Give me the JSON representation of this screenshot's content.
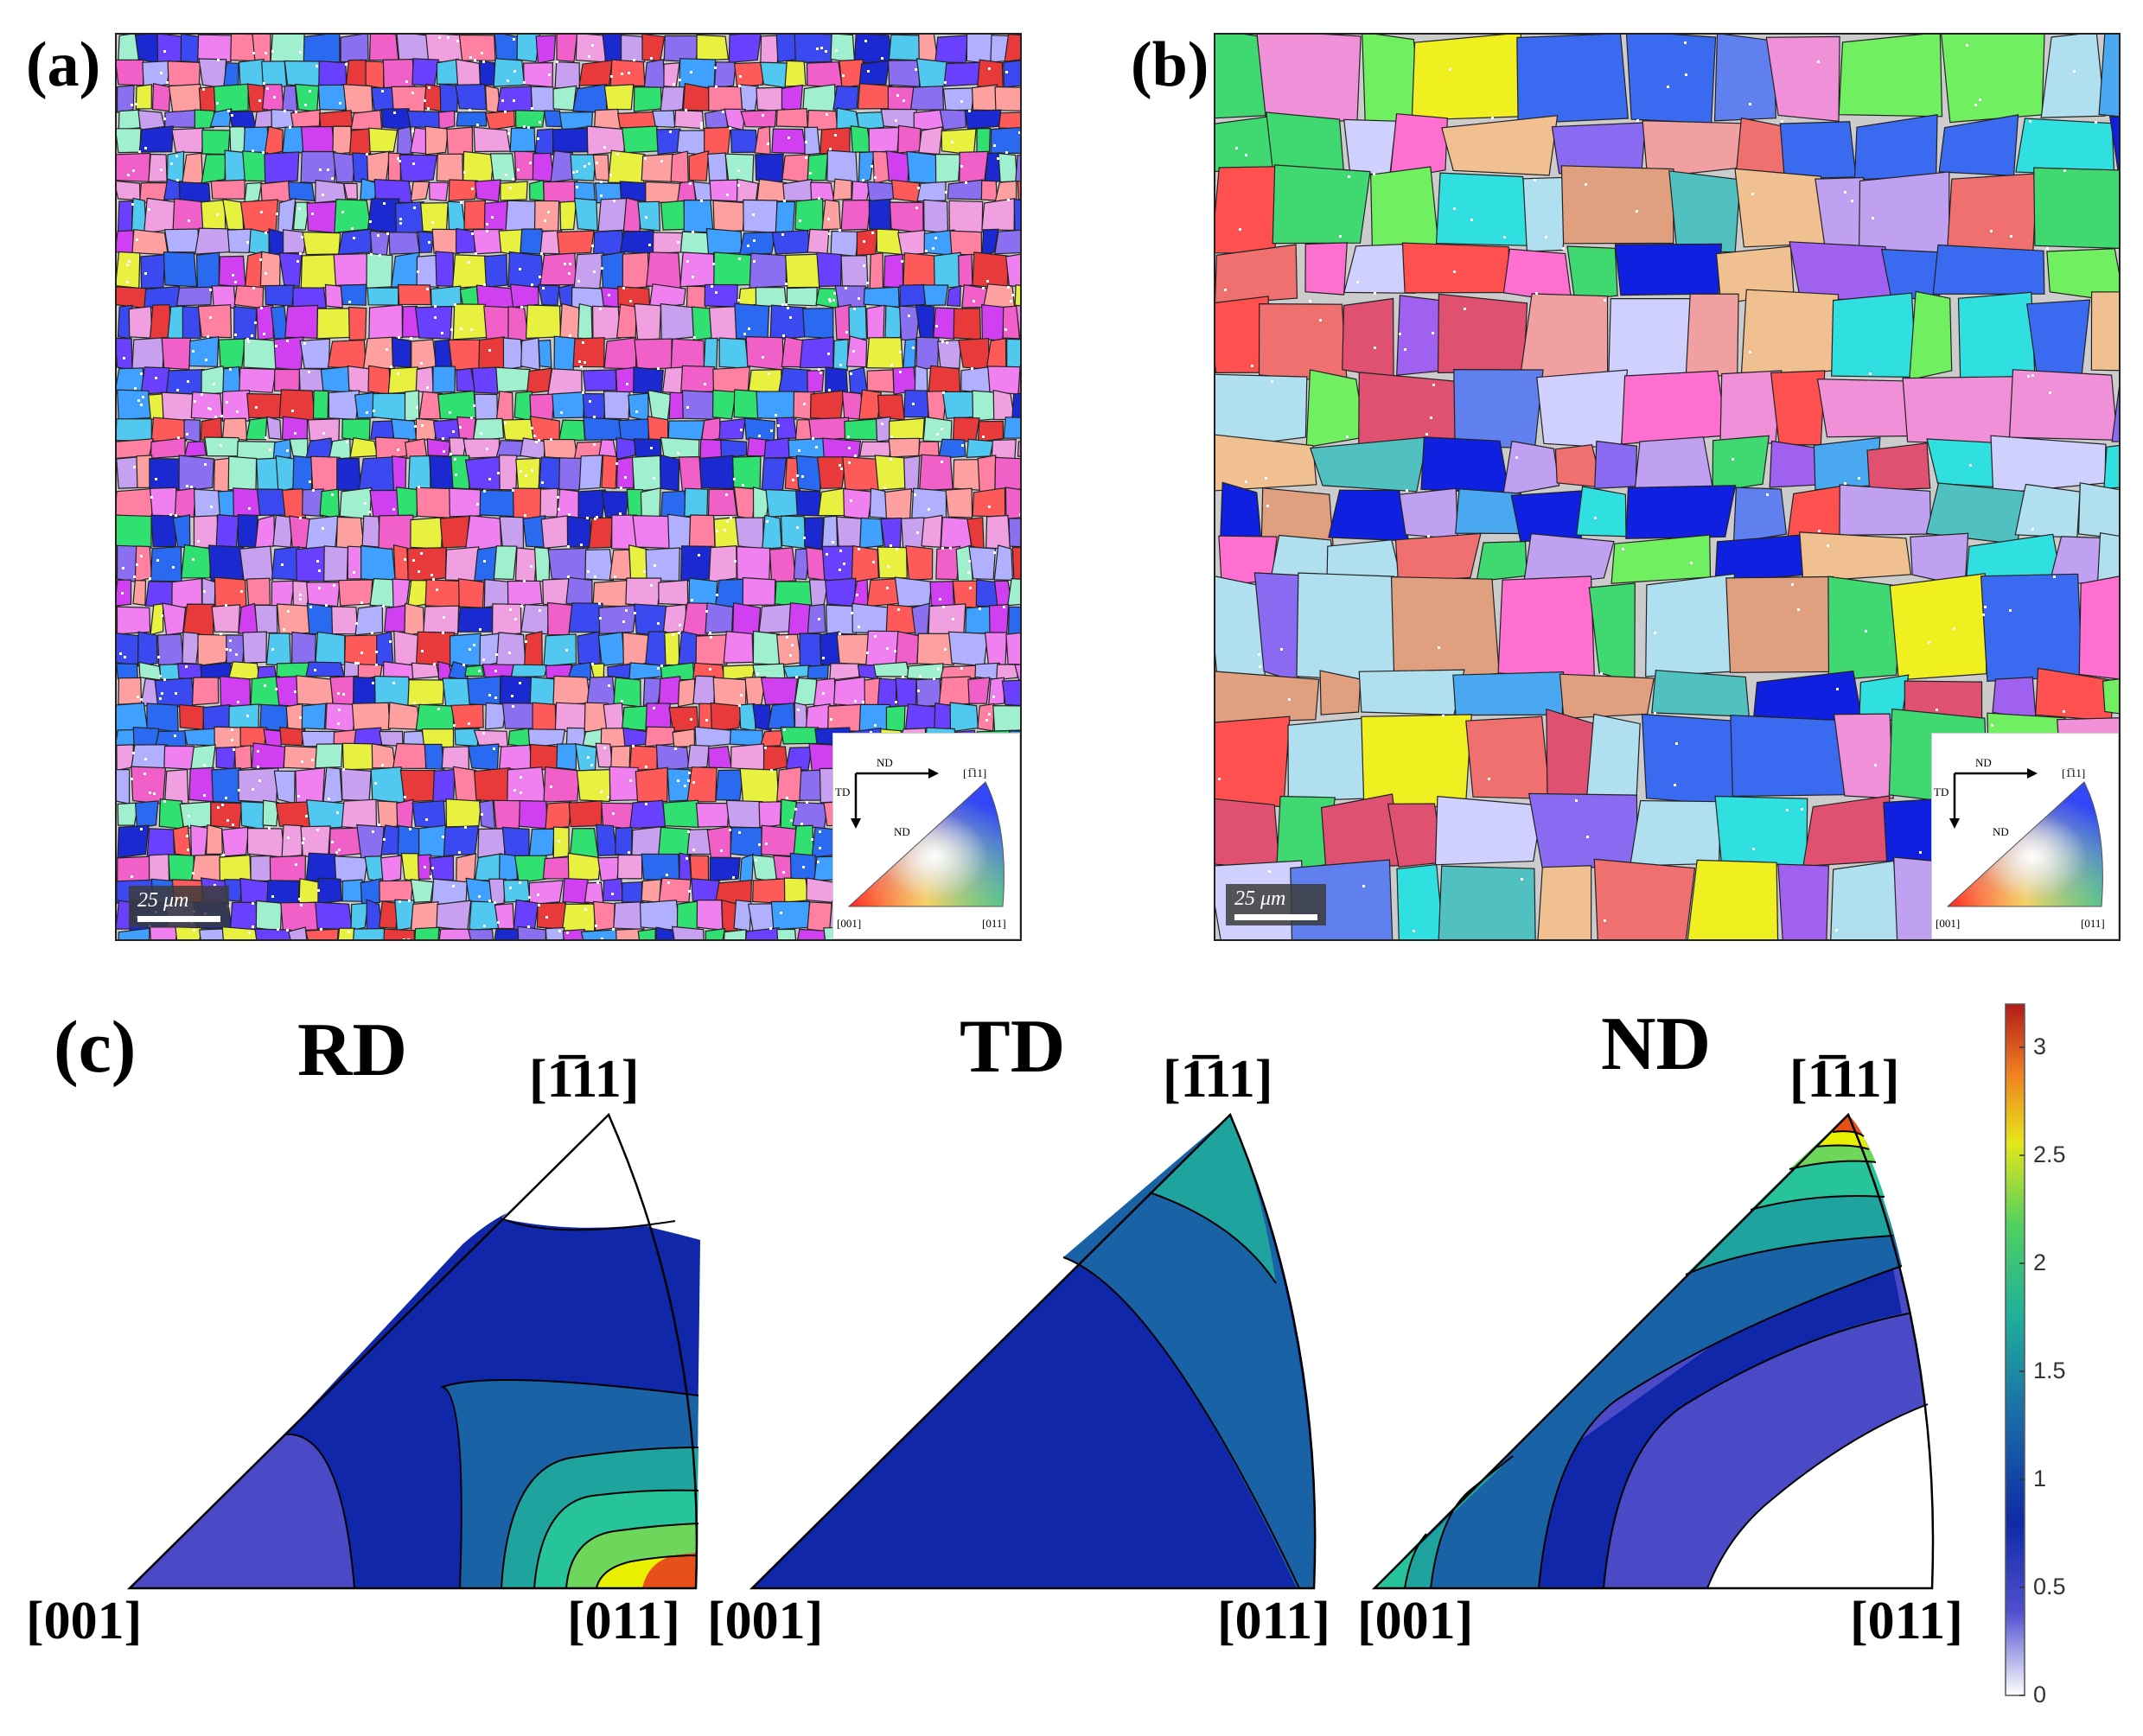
{
  "panels": {
    "a": {
      "label": "(a)",
      "scale_text": "25 μm"
    },
    "b": {
      "label": "(b)",
      "scale_text": "25 μm"
    },
    "c": {
      "label": "(c)"
    }
  },
  "ipf_key": {
    "nd_arrow": "ND",
    "td_arrow": "TD",
    "center": "ND",
    "v001": "[001]",
    "v011": "[011]",
    "v111": "[1̅11]"
  },
  "ipf_figures": [
    {
      "title": "RD",
      "v001": "[001]",
      "v011": "[011]",
      "v111": "[1̅11]"
    },
    {
      "title": "TD",
      "v001": "[001]",
      "v011": "[011]",
      "v111": "[1̅11]"
    },
    {
      "title": "ND",
      "v001": "[001]",
      "v011": "[011]",
      "v111": "[1̅11]"
    }
  ],
  "colorbar": {
    "min": 0,
    "max": 3.2,
    "ticks": [
      "0",
      "0.5",
      "1",
      "1.5",
      "2",
      "2.5",
      "3"
    ],
    "colors": [
      "#ffffff",
      "#3b3bcc",
      "#0f2aa6",
      "#1a63a8",
      "#1fa7a0",
      "#3dd36a",
      "#e6e61a",
      "#e8501a",
      "#b31a1a"
    ]
  },
  "colors": {
    "level_0": "#ffffff",
    "level_05": "#4a4ac6",
    "level_1": "#0f27a8",
    "level_15": "#1a62a6",
    "level_2": "#1fa39e",
    "level_2b": "#27c39a",
    "level_25": "#6ed65a",
    "level_3": "#e8f000",
    "level_max": "#e8501a"
  }
}
